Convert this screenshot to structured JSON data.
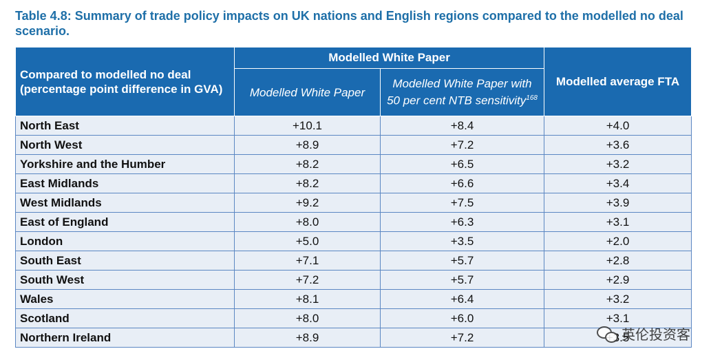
{
  "caption": "Table 4.8: Summary of trade policy impacts on UK nations and English regions compared to the modelled no deal scenario.",
  "headers": {
    "corner": "Compared to modelled no deal (percentage point difference in GVA)",
    "group": "Modelled White Paper",
    "col1": "Modelled White Paper",
    "col2": "Modelled White Paper with 50 per cent NTB sensitivity",
    "col2_footnote": "168",
    "col3": "Modelled average FTA"
  },
  "rows": [
    {
      "region": "North East",
      "wp": "+10.1",
      "ntb": "+8.4",
      "fta": "+4.0"
    },
    {
      "region": "North West",
      "wp": "+8.9",
      "ntb": "+7.2",
      "fta": "+3.6"
    },
    {
      "region": "Yorkshire and the Humber",
      "wp": "+8.2",
      "ntb": "+6.5",
      "fta": "+3.2"
    },
    {
      "region": "East Midlands",
      "wp": "+8.2",
      "ntb": "+6.6",
      "fta": "+3.4"
    },
    {
      "region": "West Midlands",
      "wp": "+9.2",
      "ntb": "+7.5",
      "fta": "+3.9"
    },
    {
      "region": "East of England",
      "wp": "+8.0",
      "ntb": "+6.3",
      "fta": "+3.1"
    },
    {
      "region": "London",
      "wp": "+5.0",
      "ntb": "+3.5",
      "fta": "+2.0"
    },
    {
      "region": "South East",
      "wp": "+7.1",
      "ntb": "+5.7",
      "fta": "+2.8"
    },
    {
      "region": "South West",
      "wp": "+7.2",
      "ntb": "+5.7",
      "fta": "+2.9"
    },
    {
      "region": "Wales",
      "wp": "+8.1",
      "ntb": "+6.4",
      "fta": "+3.2"
    },
    {
      "region": "Scotland",
      "wp": "+8.0",
      "ntb": "+6.0",
      "fta": "+3.1"
    },
    {
      "region": "Northern Ireland",
      "wp": "+8.9",
      "ntb": "+7.2",
      "fta": "+3.5"
    }
  ],
  "watermark": {
    "icon": "wechat-icon",
    "text": "英伦投资客"
  }
}
